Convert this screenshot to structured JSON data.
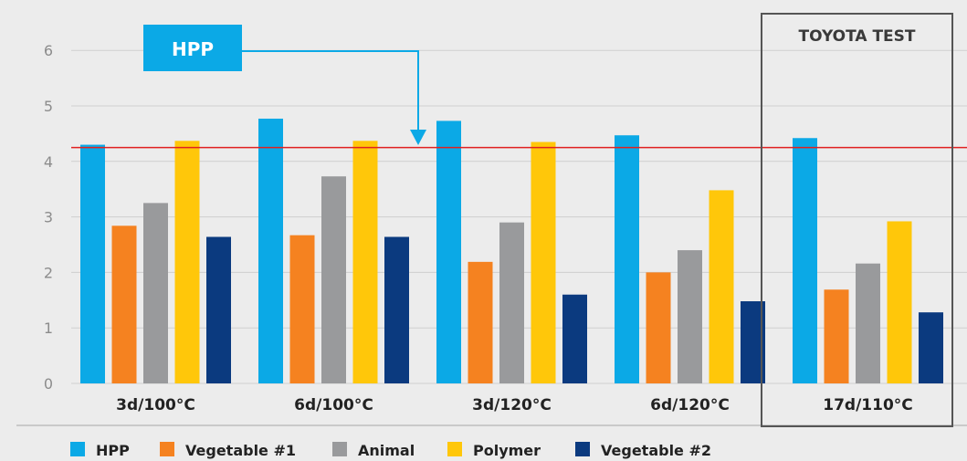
{
  "chart_data": {
    "type": "bar",
    "categories": [
      "3d/100°C",
      "6d/100°C",
      "3d/120°C",
      "6d/120°C",
      "17d/110°C"
    ],
    "series": [
      {
        "name": "HPP",
        "color": "#0ba9e6",
        "values": [
          4.3,
          4.77,
          4.73,
          4.47,
          4.42
        ]
      },
      {
        "name": "Vegetable #1",
        "color": "#f58220",
        "values": [
          2.84,
          2.67,
          2.19,
          2.0,
          1.69
        ]
      },
      {
        "name": "Animal",
        "color": "#999a9c",
        "values": [
          3.25,
          3.73,
          2.9,
          2.4,
          2.16
        ]
      },
      {
        "name": "Polymer",
        "color": "#ffc70a",
        "values": [
          4.37,
          4.37,
          4.35,
          3.48,
          2.92
        ]
      },
      {
        "name": "Vegetable #2",
        "color": "#0b3a7f",
        "values": [
          2.64,
          2.64,
          1.6,
          1.48,
          1.28
        ]
      }
    ],
    "yticks": [
      "0",
      "1",
      "2",
      "3",
      "4",
      "5",
      "6"
    ],
    "ylim": [
      0,
      6.3
    ],
    "grid": true,
    "legend": "bottom",
    "reference_line": {
      "value": 4.25,
      "color": "#e02020"
    },
    "badge": {
      "text": "HPP",
      "color": "#0ba9e6",
      "points_to": "3d/120°C"
    },
    "highlight": {
      "text": "TOYOTA TEST",
      "category": "17d/110°C"
    }
  }
}
